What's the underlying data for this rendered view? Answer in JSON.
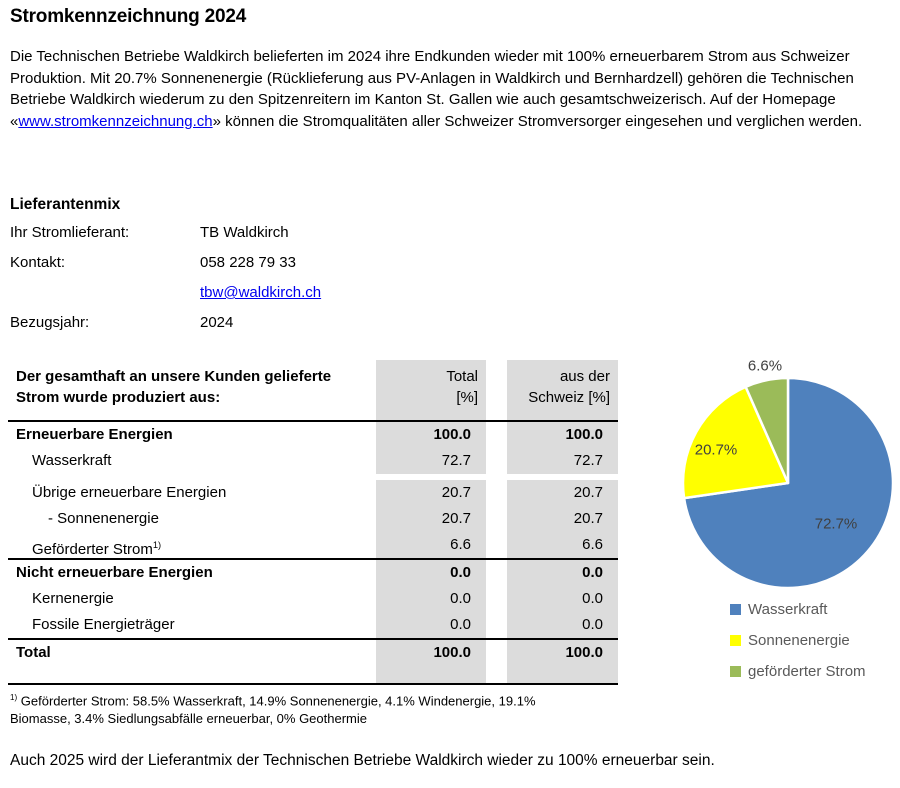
{
  "page": {
    "title": "Stromkennzeichnung 2024",
    "intro": {
      "part1": "Die Technischen Betriebe Waldkirch belieferten im 2024 ihre Endkunden wieder mit 100% erneuerbarem Strom aus Schweizer Produktion. Mit 20.7% Sonnenenergie (Rücklieferung aus PV-Anlagen in Waldkirch und Bernhardzell) gehören die Technischen Betriebe Waldkirch wiederum zu den Spitzenreitern im Kanton St. Gallen wie auch gesamtschweizerisch. Auf der Homepage «",
      "link_text": "www.stromkennzeichnung.ch",
      "part2": "» können die Stromqualitäten aller Schweizer Stromversorger eingesehen und verglichen werden."
    },
    "closing": "Auch 2025 wird der Lieferantmix der Technischen Betriebe Waldkirch wieder zu 100% erneuerbar sein."
  },
  "supplier": {
    "heading": "Lieferantenmix",
    "supplier_label": "Ihr Stromlieferant:",
    "supplier_value": "TB Waldkirch",
    "contact_label": "Kontakt:",
    "contact_phone": "058 228 79 33",
    "contact_email": "tbw@waldkirch.ch",
    "year_label": "Bezugsjahr:",
    "year_value": "2024"
  },
  "table": {
    "header": {
      "label": "Der gesamthaft an unsere Kunden gelieferte Strom wurde produziert aus:",
      "col1_line1": "Total",
      "col1_line2": "[%]",
      "col2_line1": "aus der",
      "col2_line2": "Schweiz [%]"
    },
    "rows": [
      {
        "label": "Erneuerbare Energien",
        "total": "100.0",
        "ch": "100.0"
      },
      {
        "label": "Wasserkraft",
        "total": "72.7",
        "ch": "72.7"
      },
      {
        "label": "Übrige erneuerbare Energien",
        "total": "20.7",
        "ch": "20.7"
      },
      {
        "label": "- Sonnenenergie",
        "total": "20.7",
        "ch": "20.7"
      },
      {
        "label": "Geförderter Strom",
        "sup": "1)",
        "total": "6.6",
        "ch": "6.6"
      },
      {
        "label": "Nicht erneuerbare Energien",
        "total": "0.0",
        "ch": "0.0"
      },
      {
        "label": "Kernenergie",
        "total": "0.0",
        "ch": "0.0"
      },
      {
        "label": "Fossile Energieträger",
        "total": "0.0",
        "ch": "0.0"
      },
      {
        "label": "Total",
        "total": "100.0",
        "ch": "100.0"
      }
    ],
    "footnote": {
      "sup": "1)",
      "text": " Geförderter Strom: 58.5% Wasserkraft, 14.9% Sonnenenergie, 4.1% Windenergie, 19.1% Biomasse, 3.4% Siedlungsabfälle erneuerbar, 0% Geothermie"
    }
  },
  "colors": {
    "table_column_bg": "#DCDCDC",
    "link": "#0000EE"
  },
  "chart_data": {
    "type": "pie",
    "slices": [
      {
        "name": "Wasserkraft",
        "value": 72.7,
        "label": "72.7%",
        "color": "#4F81BD"
      },
      {
        "name": "Sonnenenergie",
        "value": 20.7,
        "label": "20.7%",
        "color": "#FFFF00"
      },
      {
        "name": "geförderter Strom",
        "value": 6.6,
        "label": "6.6%",
        "color": "#9BBB59"
      }
    ],
    "start_angle_deg": 0,
    "direction": "clockwise",
    "legend_position": "bottom-left",
    "label_color": "#404040"
  }
}
